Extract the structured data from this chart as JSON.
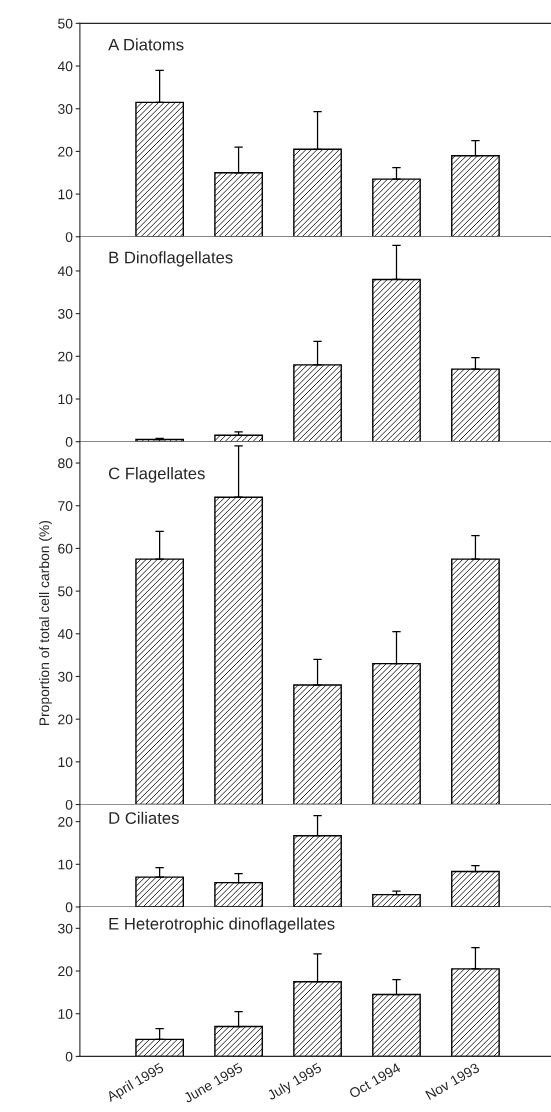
{
  "chart_data": [
    {
      "type": "bar",
      "title": "A Diatoms",
      "categories": [
        null,
        null,
        null,
        null,
        null
      ],
      "values": [
        31.5,
        15,
        20.5,
        13.5,
        19
      ],
      "errors": [
        [
          31.5,
          39
        ],
        [
          15,
          21
        ],
        [
          20.5,
          29.3
        ],
        [
          13.5,
          16.2
        ],
        [
          19,
          22.5
        ]
      ],
      "color": "#000000",
      "ylim": [
        0,
        50
      ],
      "yticks": [
        0,
        10,
        20,
        30,
        40,
        50
      ],
      "tick_labels": "y",
      "grid": false,
      "legend": false
    },
    {
      "type": "bar",
      "title": "B Dinoflagellates",
      "categories": [
        null,
        null,
        null,
        null,
        null
      ],
      "values": [
        0.5,
        1.5,
        18,
        38,
        17
      ],
      "errors": [
        [
          0.5,
          0.8
        ],
        [
          1.5,
          2.3
        ],
        [
          18,
          23.5
        ],
        [
          38,
          46
        ],
        [
          17,
          19.7
        ]
      ],
      "color": "#000000",
      "ylim": [
        0,
        48
      ],
      "yticks": [
        0,
        10,
        20,
        30,
        40
      ],
      "tick_labels": "y",
      "grid": false,
      "legend": false
    },
    {
      "type": "bar",
      "title": "C Flagellates",
      "ylabel": "Proportion of total cell carbon (%)",
      "categories": [
        null,
        null,
        null,
        null,
        null
      ],
      "values": [
        57.5,
        72,
        28,
        33,
        57.5
      ],
      "errors": [
        [
          57.5,
          64
        ],
        [
          72,
          84
        ],
        [
          28,
          34
        ],
        [
          33,
          40.5
        ],
        [
          57.5,
          63
        ]
      ],
      "color": "#000000",
      "ylim": [
        0,
        85
      ],
      "yticks": [
        0,
        10,
        20,
        30,
        40,
        50,
        60,
        70,
        80
      ],
      "tick_labels": "y",
      "grid": false,
      "legend": false
    },
    {
      "type": "bar",
      "title": "D Ciliates",
      "categories": [
        null,
        null,
        null,
        null,
        null
      ],
      "values": [
        7,
        5.7,
        16.7,
        2.9,
        8.3
      ],
      "errors": [
        [
          7,
          9.2
        ],
        [
          5.7,
          7.8
        ],
        [
          16.7,
          21.4
        ],
        [
          2.9,
          3.7
        ],
        [
          8.3,
          9.7
        ]
      ],
      "color": "#000000",
      "ylim": [
        0,
        24
      ],
      "yticks": [
        0,
        10,
        20
      ],
      "tick_labels": "y",
      "grid": false,
      "legend": false
    },
    {
      "type": "bar",
      "title": "E Heterotrophic dinoflagellates",
      "categories": [
        "April 1995",
        "June 1995",
        "July 1995",
        "Oct 1994",
        "Nov 1993"
      ],
      "values": [
        4,
        7,
        17.5,
        14.5,
        20.5
      ],
      "errors": [
        [
          4,
          6.5
        ],
        [
          7,
          10.5
        ],
        [
          17.5,
          24
        ],
        [
          14.5,
          18
        ],
        [
          20.5,
          25.5
        ]
      ],
      "color": "#000000",
      "ylim": [
        0,
        35
      ],
      "yticks": [
        0,
        10,
        20,
        30
      ],
      "grid": false,
      "legend": false
    }
  ]
}
